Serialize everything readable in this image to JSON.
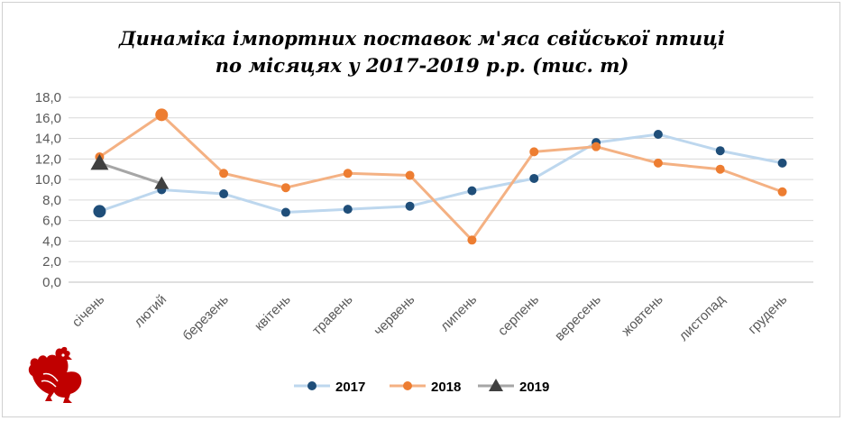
{
  "chart_data": {
    "type": "line",
    "title": "Динаміка імпортних поставок м'яса свійської птиці по місяцях у 2017-2019 р.р. (тис. т)",
    "title_lines": [
      "Динаміка імпортних поставок м'яса свійської птиці",
      "по місяцях у 2017-2019 р.р. (тис. т)"
    ],
    "categories": [
      "січень",
      "лютий",
      "березень",
      "квітень",
      "травень",
      "червень",
      "липень",
      "серпень",
      "вересень",
      "жовтень",
      "листопад",
      "грудень"
    ],
    "y_ticks": [
      "0,0",
      "2,0",
      "4,0",
      "6,0",
      "8,0",
      "10,0",
      "12,0",
      "14,0",
      "16,0",
      "18,0"
    ],
    "ylim": [
      0,
      18
    ],
    "grid": true,
    "legend_position": "bottom",
    "series": [
      {
        "name": "2017",
        "values": [
          6.9,
          9.0,
          8.6,
          6.8,
          7.1,
          7.4,
          8.9,
          10.1,
          13.6,
          14.4,
          12.8,
          11.6
        ],
        "line_color": "#bdd7ee",
        "marker_color": "#1f4e79",
        "marker": "circle"
      },
      {
        "name": "2018",
        "values": [
          12.2,
          16.3,
          10.6,
          9.2,
          10.6,
          10.4,
          4.1,
          12.7,
          13.2,
          11.6,
          11.0,
          8.8
        ],
        "line_color": "#f4b183",
        "marker_color": "#ed7d31",
        "marker": "circle"
      },
      {
        "name": "2019",
        "values": [
          11.6,
          9.6,
          null,
          null,
          null,
          null,
          null,
          null,
          null,
          null,
          null,
          null
        ],
        "line_color": "#a6a6a6",
        "marker_color": "#404040",
        "marker": "triangle"
      }
    ]
  },
  "logo": {
    "name": "rooster-icon",
    "color": "#c00000"
  }
}
